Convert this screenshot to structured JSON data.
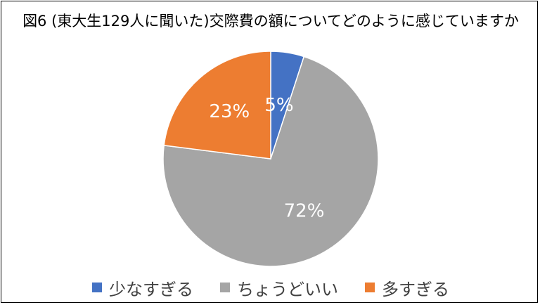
{
  "chart_data": {
    "type": "pie",
    "title": "図6 (東大生129人に聞いた)交際費の額についてどのように感じていますか",
    "categories": [
      "少なすぎる",
      "ちょうどいい",
      "多すぎる"
    ],
    "values": [
      5,
      72,
      23
    ],
    "labels": [
      "5%",
      "72%",
      "23%"
    ],
    "colors": [
      "#4472C4",
      "#A5A5A5",
      "#ED7D31"
    ],
    "legend": "bottom"
  }
}
